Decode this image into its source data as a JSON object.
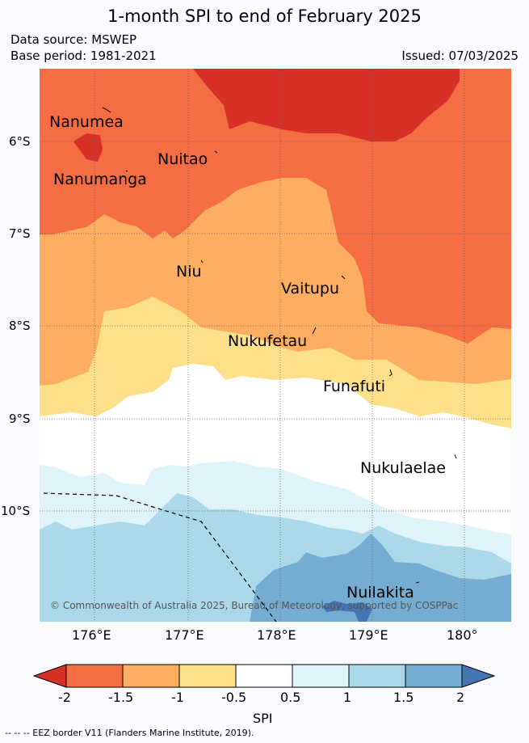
{
  "title": "1-month SPI to end of February 2025",
  "data_source": "Data source: MSWEP",
  "base_period": "Base period: 1981-2021",
  "issued": "Issued: 07/03/2025",
  "lat_labels": [
    "6°S",
    "7°S",
    "8°S",
    "9°S",
    "10°S"
  ],
  "lon_labels": [
    "176°E",
    "177°E",
    "178°E",
    "179°E",
    "180°"
  ],
  "places": [
    "Nanumea",
    "Nuitao",
    "Nanumanga",
    "Niu",
    "Vaitupu",
    "Nukufetau",
    "Funafuti",
    "Nukulaelae",
    "Nuilakita"
  ],
  "copyright": "© Commonwealth of Australia 2025, Bureau of Meteorology, supported by COSPPac",
  "colorbar": {
    "ticks": [
      "-2",
      "-1.5",
      "-1",
      "-0.5",
      "0.5",
      "1",
      "1.5",
      "2"
    ],
    "label": "SPI",
    "colors": [
      "#d73027",
      "#f46d43",
      "#fdae61",
      "#fee08b",
      "#ffffff",
      "#e0f3f8",
      "#abd9e9",
      "#74add1",
      "#4575b4"
    ]
  },
  "eez_note": "-- -- -- EEZ border V11 (Flanders Marine Institute, 2019)."
}
